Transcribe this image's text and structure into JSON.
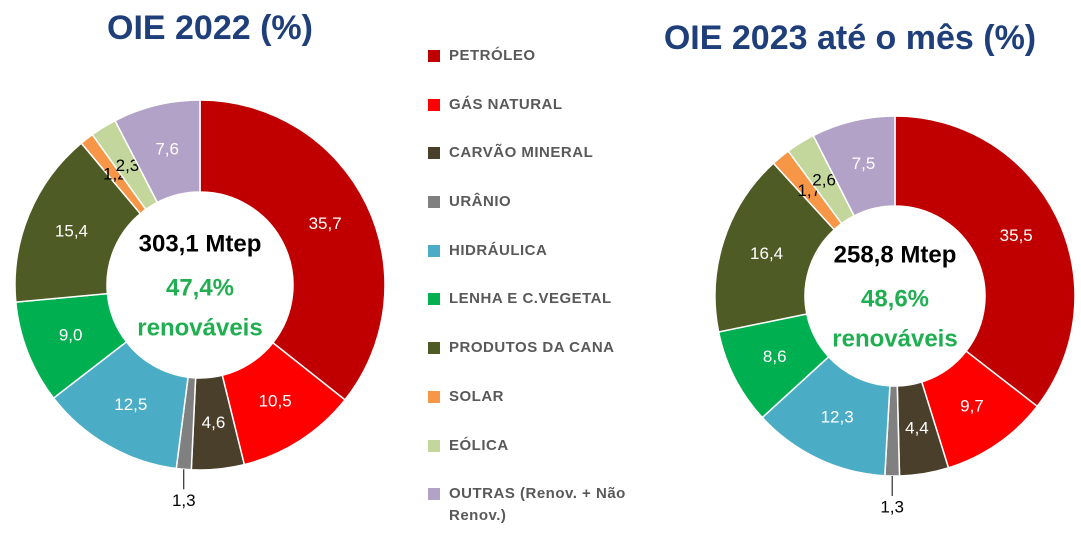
{
  "chart_data": [
    {
      "type": "pie",
      "title": "OIE 2022 (%)",
      "categories": [
        "PETRÓLEO",
        "GÁS NATURAL",
        "CARVÃO MINERAL",
        "URÂNIO",
        "HIDRÁULICA",
        "LENHA E C.VEGETAL",
        "PRODUTOS DA CANA",
        "SOLAR",
        "EÓLICA",
        "OUTRAS (Renov. + Não Renov.)"
      ],
      "values": [
        35.7,
        10.5,
        4.6,
        1.3,
        12.5,
        9.0,
        15.4,
        1.2,
        2.3,
        7.6
      ],
      "value_labels": [
        "35,7",
        "10,5",
        "4,6",
        "1,3",
        "12,5",
        "9,0",
        "15,4",
        "1,2",
        "2,3",
        "7,6"
      ],
      "colors": [
        "#c00000",
        "#ff0000",
        "#4a3f2a",
        "#808080",
        "#4bacc6",
        "#00b050",
        "#4f5b24",
        "#f79646",
        "#c3d69b",
        "#b3a2c7"
      ],
      "center": {
        "total": "303,1 Mtep",
        "renewable_share": "47,4%",
        "renewable_label": "renováveis"
      }
    },
    {
      "type": "pie",
      "title": "OIE 2023 até o mês (%)",
      "values": [
        35.5,
        9.7,
        4.4,
        1.3,
        12.3,
        8.6,
        16.4,
        1.7,
        2.6,
        7.5
      ],
      "value_labels": [
        "35,5",
        "9,7",
        "4,4",
        "1,3",
        "12,3",
        "8,6",
        "16,4",
        "1,7",
        "2,6",
        "7,5"
      ],
      "colors": [
        "#c00000",
        "#ff0000",
        "#4a3f2a",
        "#808080",
        "#4bacc6",
        "#00b050",
        "#4f5b24",
        "#f79646",
        "#c3d69b",
        "#b3a2c7"
      ],
      "center": {
        "total": "258,8 Mtep",
        "renewable_share": "48,6%",
        "renewable_label": "renováveis"
      }
    }
  ]
}
